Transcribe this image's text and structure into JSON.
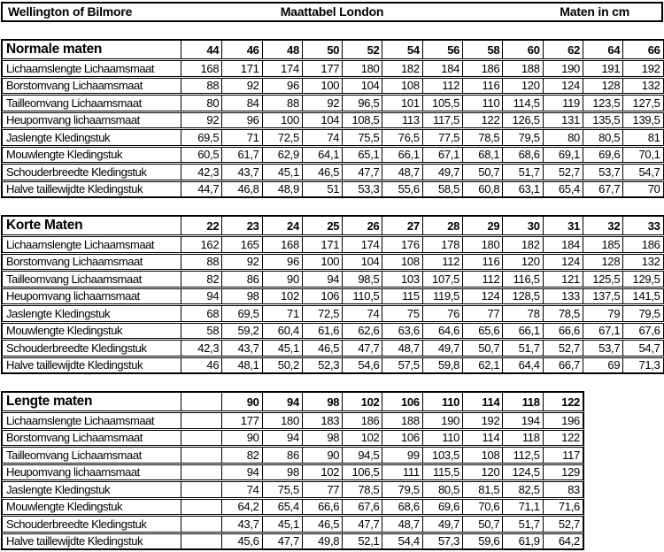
{
  "titlebar": {
    "brand": "Wellington of Bilmore",
    "title": "Maattabel London",
    "unit": "Maten in cm"
  },
  "colors": {
    "background": "#ffffff",
    "text": "#000000",
    "border": "#000000"
  },
  "tables": [
    {
      "title": "Normale maten",
      "lead_blank": false,
      "sizes": [
        "44",
        "46",
        "48",
        "50",
        "52",
        "54",
        "56",
        "58",
        "60",
        "62",
        "64",
        "66"
      ],
      "rows": [
        {
          "label": "Lichaamslengte Lichaamsmaat",
          "values": [
            "168",
            "171",
            "174",
            "177",
            "180",
            "182",
            "184",
            "186",
            "188",
            "190",
            "191",
            "192"
          ]
        },
        {
          "label": "Borstomvang Lichaamsmaat",
          "values": [
            "88",
            "92",
            "96",
            "100",
            "104",
            "108",
            "112",
            "116",
            "120",
            "124",
            "128",
            "132"
          ]
        },
        {
          "label": "Tailleomvang Lichaamsmaat",
          "values": [
            "80",
            "84",
            "88",
            "92",
            "96,5",
            "101",
            "105,5",
            "110",
            "114,5",
            "119",
            "123,5",
            "127,5"
          ]
        },
        {
          "label": "Heupomvang lichaamsmaat",
          "values": [
            "92",
            "96",
            "100",
            "104",
            "108,5",
            "113",
            "117,5",
            "122",
            "126,5",
            "131",
            "135,5",
            "139,5"
          ]
        },
        {
          "label": "Jaslengte Kledingstuk",
          "values": [
            "69,5",
            "71",
            "72,5",
            "74",
            "75,5",
            "76,5",
            "77,5",
            "78,5",
            "79,5",
            "80",
            "80,5",
            "81"
          ]
        },
        {
          "label": "Mouwlengte Kledingstuk",
          "values": [
            "60,5",
            "61,7",
            "62,9",
            "64,1",
            "65,1",
            "66,1",
            "67,1",
            "68,1",
            "68,6",
            "69,1",
            "69,6",
            "70,1"
          ]
        },
        {
          "label": "Schouderbreedte Kledingstuk",
          "values": [
            "42,3",
            "43,7",
            "45,1",
            "46,5",
            "47,7",
            "48,7",
            "49,7",
            "50,7",
            "51,7",
            "52,7",
            "53,7",
            "54,7"
          ]
        },
        {
          "label": "Halve taillewijdte Kledingstuk",
          "values": [
            "44,7",
            "46,8",
            "48,9",
            "51",
            "53,3",
            "55,6",
            "58,5",
            "60,8",
            "63,1",
            "65,4",
            "67,7",
            "70"
          ]
        }
      ]
    },
    {
      "title": "Korte Maten",
      "lead_blank": false,
      "sizes": [
        "22",
        "23",
        "24",
        "25",
        "26",
        "27",
        "28",
        "29",
        "30",
        "31",
        "32",
        "33"
      ],
      "rows": [
        {
          "label": "Lichaamslengte Lichaamsmaat",
          "values": [
            "162",
            "165",
            "168",
            "171",
            "174",
            "176",
            "178",
            "180",
            "182",
            "184",
            "185",
            "186"
          ]
        },
        {
          "label": "Borstomvang Lichaamsmaat",
          "values": [
            "88",
            "92",
            "96",
            "100",
            "104",
            "108",
            "112",
            "116",
            "120",
            "124",
            "128",
            "132"
          ]
        },
        {
          "label": "Tailleomvang Lichaamsmaat",
          "values": [
            "82",
            "86",
            "90",
            "94",
            "98,5",
            "103",
            "107,5",
            "112",
            "116,5",
            "121",
            "125,5",
            "129,5"
          ]
        },
        {
          "label": "Heupomvang lichaamsmaat",
          "values": [
            "94",
            "98",
            "102",
            "106",
            "110,5",
            "115",
            "119,5",
            "124",
            "128,5",
            "133",
            "137,5",
            "141,5"
          ]
        },
        {
          "label": "Jaslengte Kledingstuk",
          "values": [
            "68",
            "69,5",
            "71",
            "72,5",
            "74",
            "75",
            "76",
            "77",
            "78",
            "78,5",
            "79",
            "79,5"
          ]
        },
        {
          "label": "Mouwlengte Kledingstuk",
          "values": [
            "58",
            "59,2",
            "60,4",
            "61,6",
            "62,6",
            "63,6",
            "64,6",
            "65,6",
            "66,1",
            "66,6",
            "67,1",
            "67,6"
          ]
        },
        {
          "label": "Schouderbreedte Kledingstuk",
          "values": [
            "42,3",
            "43,7",
            "45,1",
            "46,5",
            "47,7",
            "48,7",
            "49,7",
            "50,7",
            "51,7",
            "52,7",
            "53,7",
            "54,7"
          ]
        },
        {
          "label": "Halve taillewijdte Kledingstuk",
          "values": [
            "46",
            "48,1",
            "50,2",
            "52,3",
            "54,6",
            "57,5",
            "59,8",
            "62,1",
            "64,4",
            "66,7",
            "69",
            "71,3"
          ]
        }
      ]
    },
    {
      "title": "Lengte maten",
      "lead_blank": true,
      "sizes": [
        "90",
        "94",
        "98",
        "102",
        "106",
        "110",
        "114",
        "118",
        "122"
      ],
      "rows": [
        {
          "label": "Lichaamslengte Lichaamsmaat",
          "values": [
            "177",
            "180",
            "183",
            "186",
            "188",
            "190",
            "192",
            "194",
            "196"
          ]
        },
        {
          "label": "Borstomvang Lichaamsmaat",
          "values": [
            "90",
            "94",
            "98",
            "102",
            "106",
            "110",
            "114",
            "118",
            "122"
          ]
        },
        {
          "label": "Tailleomvang Lichaamsmaat",
          "values": [
            "82",
            "86",
            "90",
            "94,5",
            "99",
            "103,5",
            "108",
            "112,5",
            "117"
          ]
        },
        {
          "label": "Heupomvang lichaamsmaat",
          "values": [
            "94",
            "98",
            "102",
            "106,5",
            "111",
            "115,5",
            "120",
            "124,5",
            "129"
          ]
        },
        {
          "label": "Jaslengte Kledingstuk",
          "values": [
            "74",
            "75,5",
            "77",
            "78,5",
            "79,5",
            "80,5",
            "81,5",
            "82,5",
            "83"
          ]
        },
        {
          "label": "Mouwlengte Kledingstuk",
          "values": [
            "64,2",
            "65,4",
            "66,6",
            "67,6",
            "68,6",
            "69,6",
            "70,6",
            "71,1",
            "71,6"
          ]
        },
        {
          "label": "Schouderbreedte Kledingstuk",
          "values": [
            "43,7",
            "45,1",
            "46,5",
            "47,7",
            "48,7",
            "49,7",
            "50,7",
            "51,7",
            "52,7"
          ]
        },
        {
          "label": "Halve taillewijdte Kledingstuk",
          "values": [
            "45,6",
            "47,7",
            "49,8",
            "52,1",
            "54,4",
            "57,3",
            "59,6",
            "61,9",
            "64,2"
          ]
        }
      ]
    }
  ]
}
